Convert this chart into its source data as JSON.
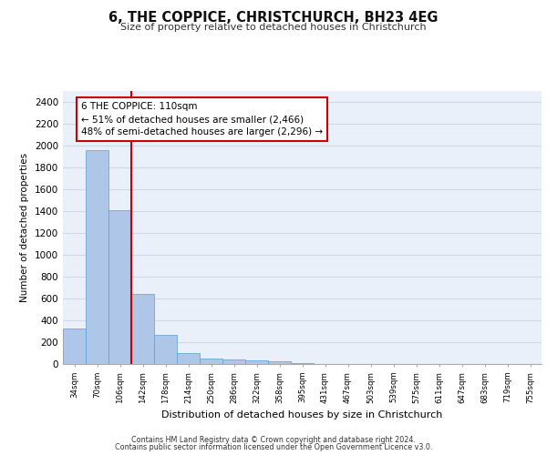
{
  "title": "6, THE COPPICE, CHRISTCHURCH, BH23 4EG",
  "subtitle": "Size of property relative to detached houses in Christchurch",
  "xlabel": "Distribution of detached houses by size in Christchurch",
  "ylabel": "Number of detached properties",
  "categories": [
    "34sqm",
    "70sqm",
    "106sqm",
    "142sqm",
    "178sqm",
    "214sqm",
    "250sqm",
    "286sqm",
    "322sqm",
    "358sqm",
    "395sqm",
    "431sqm",
    "467sqm",
    "503sqm",
    "539sqm",
    "575sqm",
    "611sqm",
    "647sqm",
    "683sqm",
    "719sqm",
    "755sqm"
  ],
  "values": [
    325,
    1960,
    1410,
    645,
    270,
    100,
    48,
    45,
    35,
    22,
    10,
    0,
    0,
    0,
    0,
    0,
    0,
    0,
    0,
    0,
    0
  ],
  "bar_color": "#aec6e8",
  "bar_edge_color": "#5a9fd4",
  "vline_x": 2,
  "vline_color": "#cc0000",
  "annotation_text": "6 THE COPPICE: 110sqm\n← 51% of detached houses are smaller (2,466)\n48% of semi-detached houses are larger (2,296) →",
  "annotation_box_color": "#ffffff",
  "annotation_box_edge_color": "#cc0000",
  "ylim": [
    0,
    2500
  ],
  "yticks": [
    0,
    200,
    400,
    600,
    800,
    1000,
    1200,
    1400,
    1600,
    1800,
    2000,
    2200,
    2400
  ],
  "grid_color": "#d0d8e8",
  "bg_color": "#eaf0fa",
  "footer_line1": "Contains HM Land Registry data © Crown copyright and database right 2024.",
  "footer_line2": "Contains public sector information licensed under the Open Government Licence v3.0."
}
